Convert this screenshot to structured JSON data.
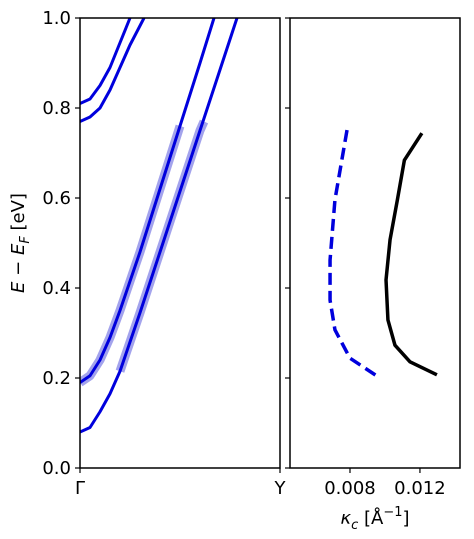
{
  "chart_data": [
    {
      "type": "line",
      "ylabel": [
        "E − E",
        "F",
        " [eV]"
      ],
      "xlim": [
        0,
        1
      ],
      "xticks": [
        {
          "value": 0,
          "label": "Γ"
        },
        {
          "value": 1,
          "label": "Y"
        }
      ],
      "ylim": [
        0,
        1
      ],
      "yticks": [
        {
          "value": 0,
          "label": "0.0"
        },
        0.2,
        0.4,
        0.6,
        0.8,
        {
          "value": 1,
          "label": "1.0"
        }
      ],
      "series": [
        {
          "color": "#a3a3ec",
          "linewidth": 9,
          "linestyle": "solid",
          "x": [
            0.2,
            0.3,
            0.4,
            0.5,
            0.6,
            0.62
          ],
          "values": [
            0.215,
            0.345,
            0.48,
            0.615,
            0.75,
            0.77
          ]
        },
        {
          "color": "#a3a3ec",
          "linewidth": 9,
          "linestyle": "solid",
          "x": [
            0,
            0.05,
            0.1,
            0.15,
            0.2,
            0.3,
            0.4,
            0.5
          ],
          "values": [
            0.19,
            0.205,
            0.24,
            0.29,
            0.35,
            0.48,
            0.62,
            0.76
          ]
        },
        {
          "color": "#0000dd",
          "linewidth": 3,
          "linestyle": "solid",
          "x": [
            0,
            0.05,
            0.1,
            0.15,
            0.2,
            0.3,
            0.4,
            0.5,
            0.6,
            0.7,
            0.785
          ],
          "values": [
            0.08,
            0.09,
            0.125,
            0.165,
            0.215,
            0.345,
            0.48,
            0.615,
            0.75,
            0.885,
            1.0
          ]
        },
        {
          "color": "#0000dd",
          "linewidth": 3,
          "linestyle": "solid",
          "x": [
            0,
            0.05,
            0.1,
            0.15,
            0.2,
            0.3,
            0.4,
            0.5,
            0.6,
            0.67
          ],
          "values": [
            0.19,
            0.205,
            0.24,
            0.29,
            0.35,
            0.48,
            0.62,
            0.76,
            0.9,
            1.0
          ]
        },
        {
          "color": "#0000dd",
          "linewidth": 3,
          "linestyle": "solid",
          "x": [
            0,
            0.05,
            0.1,
            0.15,
            0.2,
            0.25,
            0.32
          ],
          "values": [
            0.77,
            0.78,
            0.8,
            0.84,
            0.89,
            0.94,
            1.0
          ]
        },
        {
          "color": "#0000dd",
          "linewidth": 3,
          "linestyle": "solid",
          "x": [
            0,
            0.05,
            0.1,
            0.15,
            0.2,
            0.25
          ],
          "values": [
            0.81,
            0.82,
            0.85,
            0.89,
            0.945,
            1.0
          ]
        }
      ]
    },
    {
      "type": "line",
      "xlabel": [
        "κ",
        "c",
        " [Å",
        "−1",
        "]"
      ],
      "xlim": [
        0.00457,
        0.01429
      ],
      "xticks": [
        0.008,
        0.012
      ],
      "ylim": [
        0,
        1
      ],
      "yticks": [
        0,
        0.2,
        0.4,
        0.6,
        0.8,
        1
      ],
      "series": [
        {
          "color": "#0000dd",
          "linewidth": 3.5,
          "linestyle": "dashed",
          "x": [
            0.00783,
            0.00714,
            0.00686,
            0.00686,
            0.00714,
            0.008,
            0.00971
          ],
          "values": [
            0.751,
            0.596,
            0.462,
            0.373,
            0.307,
            0.244,
            0.2
          ]
        },
        {
          "color": "#000000",
          "linewidth": 3.5,
          "linestyle": "solid",
          "x": [
            0.01211,
            0.01111,
            0.01071,
            0.01029,
            0.01006,
            0.01017,
            0.01057,
            0.01143,
            0.01297
          ],
          "values": [
            0.744,
            0.684,
            0.596,
            0.507,
            0.418,
            0.329,
            0.273,
            0.236,
            0.207
          ]
        }
      ]
    }
  ]
}
